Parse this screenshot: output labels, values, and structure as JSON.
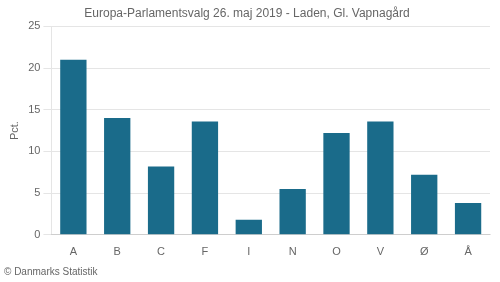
{
  "chart_data": {
    "type": "bar",
    "title": "Europa-Parlamentsvalg 26. maj 2019 - Laden, Gl. Vapnagård",
    "footer": "© Danmarks Statistik",
    "ylabel": "Pct.",
    "categories": [
      "A",
      "B",
      "C",
      "F",
      "I",
      "N",
      "O",
      "V",
      "Ø",
      "Å"
    ],
    "values": [
      21.0,
      14.0,
      8.2,
      13.6,
      1.8,
      5.5,
      12.2,
      13.6,
      7.2,
      3.8
    ],
    "color": "#1a6b8a",
    "ylim": [
      0,
      25
    ],
    "yticks": [
      0,
      5,
      10,
      15,
      20,
      25
    ],
    "grid": true
  }
}
